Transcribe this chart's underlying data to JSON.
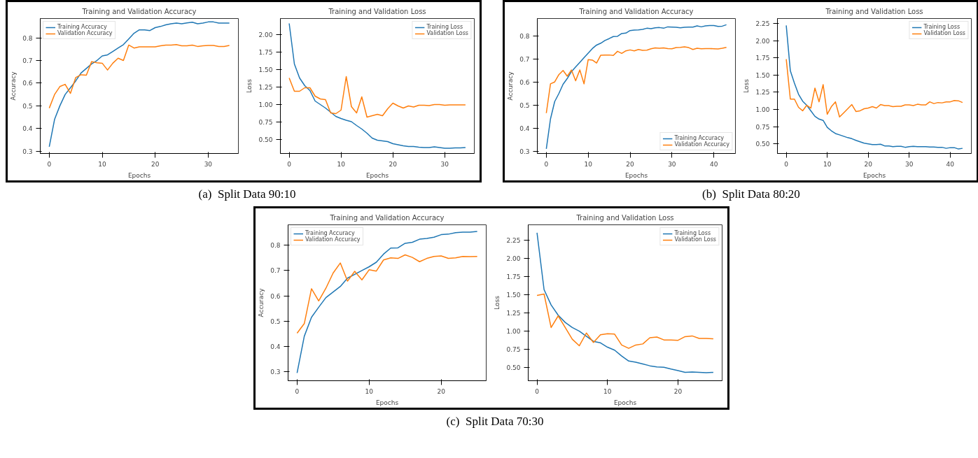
{
  "chart_data": [
    {
      "type": "line",
      "title": "Training and Validation Accuracy",
      "xlabel": "Epochs",
      "ylabel": "Accuracy",
      "annotations": [
        "(a)  Split Data 90:10"
      ],
      "legend": "top left",
      "xlim": [
        -1.7,
        35.7
      ],
      "ylim": [
        0.29,
        0.885
      ],
      "xticks": [
        0,
        10,
        20,
        30
      ],
      "yticks": [
        0.3,
        0.4,
        0.5,
        0.6,
        0.7,
        0.8
      ],
      "x": [
        0,
        1,
        2,
        3,
        4,
        5,
        6,
        7,
        8,
        9,
        10,
        11,
        12,
        13,
        14,
        15,
        16,
        17,
        18,
        19,
        20,
        21,
        22,
        23,
        24,
        25,
        26,
        27,
        28,
        29,
        30,
        31,
        32,
        33,
        34
      ],
      "series": [
        {
          "name": "Training Accuracy",
          "color": "#1f77b4",
          "values": [
            0.32,
            0.44,
            0.5,
            0.55,
            0.58,
            0.61,
            0.645,
            0.665,
            0.685,
            0.7,
            0.72,
            0.725,
            0.74,
            0.755,
            0.77,
            0.795,
            0.82,
            0.835,
            0.835,
            0.832,
            0.845,
            0.85,
            0.857,
            0.862,
            0.865,
            0.862,
            0.866,
            0.869,
            0.862,
            0.865,
            0.87,
            0.87,
            0.865,
            0.865,
            0.865
          ]
        },
        {
          "name": "Validation Accuracy",
          "color": "#ff7f0e",
          "values": [
            0.49,
            0.55,
            0.585,
            0.595,
            0.555,
            0.625,
            0.637,
            0.635,
            0.695,
            0.69,
            0.688,
            0.658,
            0.688,
            0.71,
            0.7,
            0.768,
            0.755,
            0.76,
            0.76,
            0.76,
            0.76,
            0.765,
            0.768,
            0.768,
            0.77,
            0.765,
            0.765,
            0.768,
            0.762,
            0.765,
            0.766,
            0.766,
            0.762,
            0.762,
            0.766
          ]
        }
      ]
    },
    {
      "type": "line",
      "title": "Training and Validation Loss",
      "xlabel": "Epochs",
      "ylabel": "Loss",
      "legend": "top right",
      "xlim": [
        -1.7,
        35.7
      ],
      "ylim": [
        0.3,
        2.23
      ],
      "xticks": [
        0,
        10,
        20,
        30
      ],
      "yticks": [
        {
          "value": 0.5,
          "label": "0.50"
        },
        {
          "value": 0.75,
          "label": "0.75"
        },
        {
          "value": 1.0,
          "label": "1.00"
        },
        {
          "value": 1.25,
          "label": "1.25"
        },
        {
          "value": 1.5,
          "label": "1.50"
        },
        {
          "value": 1.75,
          "label": "1.75"
        },
        {
          "value": 2.0,
          "label": "2.00"
        }
      ],
      "x": [
        0,
        1,
        2,
        3,
        4,
        5,
        6,
        7,
        8,
        9,
        10,
        11,
        12,
        13,
        14,
        15,
        16,
        17,
        18,
        19,
        20,
        21,
        22,
        23,
        24,
        25,
        26,
        27,
        28,
        29,
        30,
        31,
        32,
        33,
        34
      ],
      "series": [
        {
          "name": "Training Loss",
          "color": "#1f77b4",
          "values": [
            2.16,
            1.58,
            1.38,
            1.27,
            1.2,
            1.05,
            1.0,
            0.95,
            0.89,
            0.83,
            0.8,
            0.775,
            0.755,
            0.7,
            0.65,
            0.59,
            0.52,
            0.49,
            0.48,
            0.47,
            0.44,
            0.425,
            0.41,
            0.4,
            0.4,
            0.39,
            0.385,
            0.385,
            0.395,
            0.385,
            0.375,
            0.375,
            0.38,
            0.38,
            0.385
          ]
        },
        {
          "name": "Validation Loss",
          "color": "#ff7f0e",
          "values": [
            1.38,
            1.19,
            1.19,
            1.24,
            1.24,
            1.12,
            1.08,
            1.07,
            0.88,
            0.87,
            0.92,
            1.4,
            0.97,
            0.88,
            1.11,
            0.82,
            0.84,
            0.86,
            0.84,
            0.94,
            1.02,
            0.98,
            0.95,
            0.98,
            0.965,
            0.99,
            0.99,
            0.985,
            1.0,
            1.0,
            0.99,
            0.995,
            0.995,
            0.995,
            0.995
          ]
        }
      ]
    },
    {
      "type": "line",
      "title": "Training and Validation Accuracy",
      "xlabel": "Epochs",
      "ylabel": "Accuracy",
      "annotations": [
        "(b)  Split Data 80:20"
      ],
      "legend": "bottom right",
      "xlim": [
        -2.15,
        45.15
      ],
      "ylim": [
        0.29,
        0.875
      ],
      "xticks": [
        0,
        10,
        20,
        30,
        40
      ],
      "yticks": [
        0.3,
        0.4,
        0.5,
        0.6,
        0.7,
        0.8
      ],
      "x": [
        0,
        1,
        2,
        3,
        4,
        5,
        6,
        7,
        8,
        9,
        10,
        11,
        12,
        13,
        14,
        15,
        16,
        17,
        18,
        19,
        20,
        21,
        22,
        23,
        24,
        25,
        26,
        27,
        28,
        29,
        30,
        31,
        32,
        33,
        34,
        35,
        36,
        37,
        38,
        39,
        40,
        41,
        42,
        43
      ],
      "series": [
        {
          "name": "Training Accuracy",
          "color": "#1f77b4",
          "values": [
            0.31,
            0.44,
            0.515,
            0.55,
            0.59,
            0.615,
            0.645,
            0.665,
            0.685,
            0.705,
            0.725,
            0.745,
            0.76,
            0.768,
            0.78,
            0.788,
            0.797,
            0.798,
            0.81,
            0.812,
            0.823,
            0.825,
            0.826,
            0.828,
            0.833,
            0.831,
            0.835,
            0.836,
            0.833,
            0.839,
            0.838,
            0.837,
            0.835,
            0.837,
            0.838,
            0.838,
            0.843,
            0.839,
            0.843,
            0.845,
            0.845,
            0.841,
            0.842,
            0.848
          ]
        },
        {
          "name": "Validation Accuracy",
          "color": "#ff7f0e",
          "values": [
            0.465,
            0.592,
            0.6,
            0.632,
            0.65,
            0.625,
            0.652,
            0.605,
            0.652,
            0.592,
            0.697,
            0.695,
            0.682,
            0.716,
            0.717,
            0.717,
            0.715,
            0.733,
            0.724,
            0.735,
            0.739,
            0.735,
            0.741,
            0.737,
            0.738,
            0.744,
            0.748,
            0.746,
            0.748,
            0.745,
            0.744,
            0.749,
            0.75,
            0.752,
            0.749,
            0.741,
            0.746,
            0.744,
            0.745,
            0.745,
            0.744,
            0.743,
            0.746,
            0.75
          ]
        }
      ]
    },
    {
      "type": "line",
      "title": "Training and Validation Loss",
      "xlabel": "Epochs",
      "ylabel": "Loss",
      "legend": "top right",
      "xlim": [
        -2.15,
        45.15
      ],
      "ylim": [
        0.36,
        2.32
      ],
      "xticks": [
        0,
        10,
        20,
        30,
        40
      ],
      "yticks": [
        {
          "value": 0.5,
          "label": "0.50"
        },
        {
          "value": 0.75,
          "label": "0.75"
        },
        {
          "value": 1.0,
          "label": "1.00"
        },
        {
          "value": 1.25,
          "label": "1.25"
        },
        {
          "value": 1.5,
          "label": "1.50"
        },
        {
          "value": 1.75,
          "label": "1.75"
        },
        {
          "value": 2.0,
          "label": "2.00"
        },
        {
          "value": 2.25,
          "label": "2.25"
        }
      ],
      "x": [
        0,
        1,
        2,
        3,
        4,
        5,
        6,
        7,
        8,
        9,
        10,
        11,
        12,
        13,
        14,
        15,
        16,
        17,
        18,
        19,
        20,
        21,
        22,
        23,
        24,
        25,
        26,
        27,
        28,
        29,
        30,
        31,
        32,
        33,
        34,
        35,
        36,
        37,
        38,
        39,
        40,
        41,
        42,
        43
      ],
      "series": [
        {
          "name": "Training Loss",
          "color": "#1f77b4",
          "values": [
            2.22,
            1.56,
            1.38,
            1.22,
            1.12,
            1.06,
            0.98,
            0.9,
            0.86,
            0.84,
            0.74,
            0.69,
            0.65,
            0.63,
            0.61,
            0.59,
            0.575,
            0.55,
            0.53,
            0.51,
            0.5,
            0.49,
            0.49,
            0.495,
            0.47,
            0.47,
            0.46,
            0.465,
            0.465,
            0.45,
            0.46,
            0.465,
            0.46,
            0.46,
            0.46,
            0.455,
            0.455,
            0.45,
            0.45,
            0.435,
            0.445,
            0.445,
            0.425,
            0.435
          ]
        },
        {
          "name": "Validation Loss",
          "color": "#ff7f0e",
          "values": [
            1.73,
            1.15,
            1.15,
            1.03,
            0.98,
            1.06,
            1.02,
            1.31,
            1.11,
            1.36,
            0.93,
            1.04,
            1.11,
            0.89,
            0.95,
            1.01,
            1.07,
            0.97,
            0.98,
            1.01,
            1.02,
            1.04,
            1.02,
            1.07,
            1.055,
            1.055,
            1.04,
            1.045,
            1.045,
            1.065,
            1.065,
            1.055,
            1.075,
            1.065,
            1.065,
            1.11,
            1.085,
            1.1,
            1.095,
            1.11,
            1.11,
            1.13,
            1.125,
            1.1
          ]
        }
      ]
    },
    {
      "type": "line",
      "title": "Training and Validation Accuracy",
      "xlabel": "Epochs",
      "ylabel": "Accuracy",
      "annotations": [
        "(c)  Split Data 70:30"
      ],
      "legend": "top left",
      "xlim": [
        -1.25,
        26.25
      ],
      "ylim": [
        0.264,
        0.881
      ],
      "xticks": [
        0,
        10,
        20
      ],
      "yticks": [
        0.3,
        0.4,
        0.5,
        0.6,
        0.7,
        0.8
      ],
      "x": [
        0,
        1,
        2,
        3,
        4,
        5,
        6,
        7,
        8,
        9,
        10,
        11,
        12,
        13,
        14,
        15,
        16,
        17,
        18,
        19,
        20,
        21,
        22,
        23,
        24,
        25
      ],
      "series": [
        {
          "name": "Training Accuracy",
          "color": "#1f77b4",
          "values": [
            0.295,
            0.44,
            0.515,
            0.555,
            0.593,
            0.615,
            0.637,
            0.67,
            0.685,
            0.7,
            0.715,
            0.733,
            0.765,
            0.789,
            0.79,
            0.808,
            0.812,
            0.824,
            0.827,
            0.832,
            0.842,
            0.844,
            0.85,
            0.852,
            0.852,
            0.855
          ]
        },
        {
          "name": "Validation Accuracy",
          "color": "#ff7f0e",
          "values": [
            0.452,
            0.49,
            0.628,
            0.58,
            0.63,
            0.69,
            0.73,
            0.658,
            0.697,
            0.663,
            0.703,
            0.698,
            0.742,
            0.75,
            0.748,
            0.762,
            0.752,
            0.735,
            0.748,
            0.756,
            0.758,
            0.748,
            0.75,
            0.756,
            0.755,
            0.756
          ]
        }
      ]
    },
    {
      "type": "line",
      "title": "Training and Validation Loss",
      "xlabel": "Epochs",
      "ylabel": "Loss",
      "legend": "top right",
      "xlim": [
        -1.25,
        26.25
      ],
      "ylim": [
        0.32,
        2.46
      ],
      "xticks": [
        0,
        10,
        20
      ],
      "yticks": [
        {
          "value": 0.5,
          "label": "0.50"
        },
        {
          "value": 0.75,
          "label": "0.75"
        },
        {
          "value": 1.0,
          "label": "1.00"
        },
        {
          "value": 1.25,
          "label": "1.25"
        },
        {
          "value": 1.5,
          "label": "1.50"
        },
        {
          "value": 1.75,
          "label": "1.75"
        },
        {
          "value": 2.0,
          "label": "2.00"
        },
        {
          "value": 2.25,
          "label": "2.25"
        }
      ],
      "x": [
        0,
        1,
        2,
        3,
        4,
        5,
        6,
        7,
        8,
        9,
        10,
        11,
        12,
        13,
        14,
        15,
        16,
        17,
        18,
        19,
        20,
        21,
        22,
        23,
        24,
        25
      ],
      "series": [
        {
          "name": "Training Loss",
          "color": "#1f77b4",
          "values": [
            2.35,
            1.57,
            1.36,
            1.22,
            1.12,
            1.05,
            1.0,
            0.93,
            0.86,
            0.84,
            0.78,
            0.74,
            0.66,
            0.59,
            0.575,
            0.55,
            0.525,
            0.51,
            0.505,
            0.48,
            0.46,
            0.435,
            0.44,
            0.435,
            0.43,
            0.435
          ]
        },
        {
          "name": "Validation Loss",
          "color": "#ff7f0e",
          "values": [
            1.49,
            1.51,
            1.05,
            1.21,
            1.05,
            0.89,
            0.8,
            0.975,
            0.845,
            0.95,
            0.965,
            0.96,
            0.81,
            0.765,
            0.81,
            0.825,
            0.91,
            0.92,
            0.88,
            0.88,
            0.875,
            0.925,
            0.935,
            0.9,
            0.9,
            0.895
          ]
        }
      ]
    }
  ]
}
